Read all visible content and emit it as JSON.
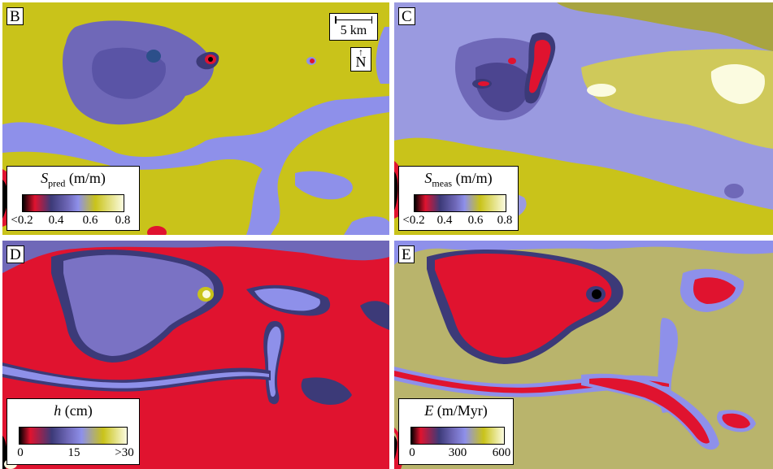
{
  "panels": [
    {
      "id": "B",
      "legend": {
        "symbol": "S",
        "subscript": "pred",
        "unit": "(m/m)",
        "ticks": [
          "<0.2",
          "0.4",
          "0.6",
          "0.8"
        ]
      }
    },
    {
      "id": "C",
      "legend": {
        "symbol": "S",
        "subscript": "meas",
        "unit": "(m/m)",
        "ticks": [
          "<0.2",
          "0.4",
          "0.6",
          "0.8"
        ]
      }
    },
    {
      "id": "D",
      "legend": {
        "symbol": "h",
        "subscript": "",
        "unit": "(cm)",
        "ticks": [
          "0",
          "15",
          ">30"
        ]
      }
    },
    {
      "id": "E",
      "legend": {
        "symbol": "E",
        "subscript": "",
        "unit": "(m/Myr)",
        "ticks": [
          "0",
          "300",
          "600"
        ]
      }
    }
  ],
  "scale_bar": {
    "label": "5 km"
  },
  "north_arrow": {
    "label": "N"
  },
  "colors": {
    "low_black": "#000000",
    "red": "#e0132f",
    "dark_blue": "#3c3a78",
    "purple_blue": "#6f68b8",
    "light_blue": "#8e90ea",
    "olive_yellow": "#c9c31a",
    "pale_yellow": "#fbfbe0",
    "tan": "#b9b46c"
  }
}
